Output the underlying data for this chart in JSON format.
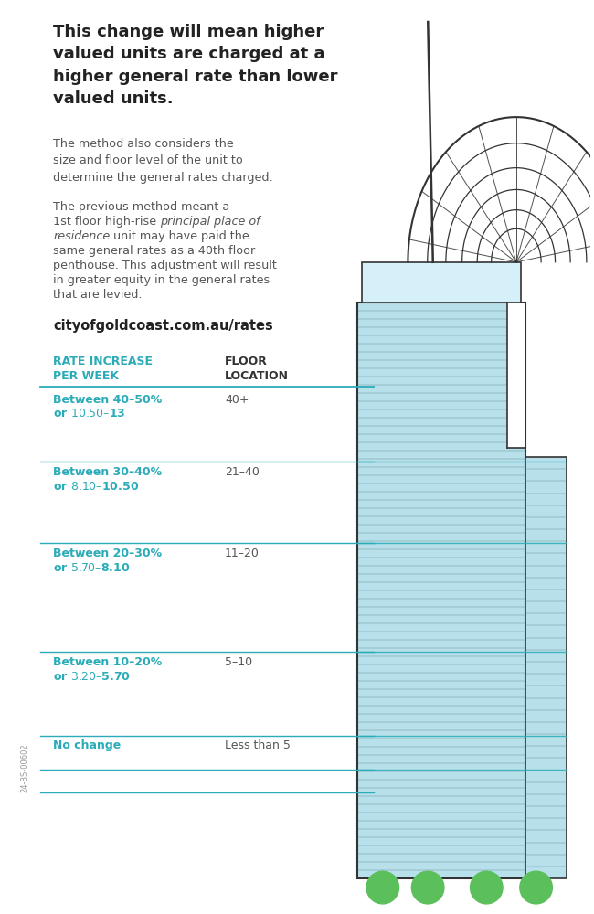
{
  "title_bold": "This change will mean higher\nvalued units are charged at a\nhigher general rate than lower\nvalued units.",
  "para1": "The method also considers the\nsize and floor level of the unit to\ndetermine the general rates charged.",
  "para2a": "The previous method meant a\n1st floor high-rise ",
  "para2_italic": "principal place of\nresidence",
  "para2b": " unit may have paid the\nsame general rates as a 40th floor\npenthouse. This adjustment will result\nin greater equity in the general rates\nthat are levied.",
  "url": "cityofgoldcoast.com.au/rates",
  "col_header1": "RATE INCREASE\nPER WEEK",
  "col_header2": "FLOOR\nLOCATION",
  "rows": [
    {
      "rate1": "Between 40–50%",
      "rate2": "or $10.50–$13",
      "floor": "40+"
    },
    {
      "rate1": "Between 30–40%",
      "rate2": "or $8.10–$10.50",
      "floor": "21–40"
    },
    {
      "rate1": "Between 20–30%",
      "rate2": "or $5.70–$8.10",
      "floor": "11–20"
    },
    {
      "rate1": "Between 10–20%",
      "rate2": "or $3.20–$5.70",
      "floor": "5–10"
    },
    {
      "rate1": "No change",
      "rate2": "",
      "floor": "Less than 5"
    }
  ],
  "teal": "#2AACB8",
  "building_fill": "#B8E0EA",
  "building_fill_light": "#D0EEF5",
  "building_outline": "#333333",
  "floor_line_color": "#4A7A8A",
  "background": "#FFFFFF",
  "text_dark": "#333333",
  "text_gray": "#555555",
  "green_tree": "#5BBF5B",
  "watermark": "24-BS-00602",
  "title_fontsize": 13,
  "body_fontsize": 9.2,
  "url_fontsize": 10.5,
  "header_fontsize": 9,
  "row_fontsize": 9
}
